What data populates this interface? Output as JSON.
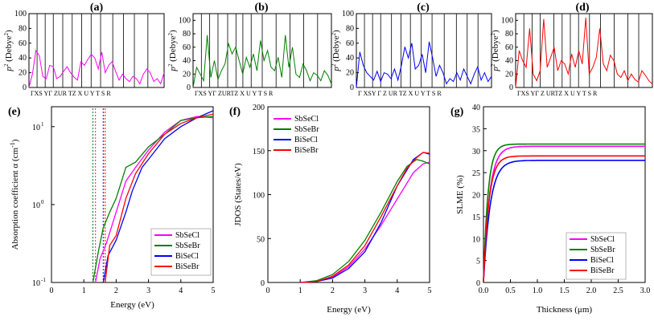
{
  "colors": {
    "SbSeCl": "#ff00ff",
    "SbSeBr": "#008000",
    "BiSeCl": "#0000ff",
    "BiSeBr": "#ff0000",
    "axis": "#000000"
  },
  "chart_data": [
    {
      "panel": "(a)",
      "type": "line",
      "series": "SbSeCl",
      "color": "#ff00ff",
      "ylabel": "p²(Debye²)",
      "ylabel_main": "p",
      "ylabel_sup1": "2",
      "ylabel_unit": "(Debye",
      "ylabel_sup2": "2",
      "ylabel_close": ")",
      "ylim": [
        0,
        100
      ],
      "yticks": [
        0,
        20,
        40,
        60,
        80,
        100
      ],
      "kpoint_labels": "ΓXS YΓ ZUR TZ X U Y T S R",
      "kpath": [
        0,
        0.06,
        0.12,
        0.18,
        0.25,
        0.32,
        0.39,
        0.46,
        0.53,
        0.62,
        0.7,
        0.78,
        0.88,
        1
      ],
      "values": [
        0,
        18,
        50,
        43,
        15,
        12,
        30,
        28,
        12,
        15,
        22,
        28,
        20,
        14,
        10,
        35,
        30,
        38,
        45,
        40,
        25,
        48,
        20,
        30,
        35,
        22,
        10,
        18,
        12,
        8,
        15,
        12,
        5,
        18,
        25,
        20,
        8,
        12,
        5,
        20
      ]
    },
    {
      "panel": "(b)",
      "type": "line",
      "series": "SbSeBr",
      "color": "#008000",
      "ylabel": "p²(Debye²)",
      "ylabel_main": "p",
      "ylabel_sup1": "2",
      "ylabel_unit": "(Debye",
      "ylabel_sup2": "2",
      "ylabel_close": ")",
      "ylim": [
        0,
        110
      ],
      "yticks": [
        0,
        20,
        40,
        60,
        80,
        100
      ],
      "kpoint_labels": "ΓXS YΓ ZURTZ X U Y T S R",
      "kpath": [
        0,
        0.06,
        0.12,
        0.18,
        0.25,
        0.31,
        0.36,
        0.42,
        0.5,
        0.6,
        0.7,
        0.8,
        0.9,
        1
      ],
      "values": [
        0,
        30,
        20,
        10,
        78,
        15,
        40,
        12,
        25,
        35,
        65,
        50,
        60,
        40,
        20,
        45,
        30,
        50,
        25,
        70,
        40,
        55,
        30,
        25,
        45,
        15,
        78,
        30,
        60,
        20,
        15,
        35,
        25,
        10,
        22,
        18,
        10,
        25,
        18,
        5
      ]
    },
    {
      "panel": "(c)",
      "type": "line",
      "series": "BiSeCl",
      "color": "#0000ff",
      "ylabel": "p²(Debye²)",
      "ylabel_main": "p",
      "ylabel_sup1": "2",
      "ylabel_unit": "(Debye",
      "ylabel_sup2": "2",
      "ylabel_close": ")",
      "ylim": [
        0,
        100
      ],
      "yticks": [
        0,
        20,
        40,
        60,
        80,
        100
      ],
      "kpoint_labels": "Γ XSY Γ Z UR TZ X U Y T S R",
      "kpath": [
        0,
        0.06,
        0.12,
        0.18,
        0.26,
        0.33,
        0.4,
        0.48,
        0.56,
        0.65,
        0.74,
        0.82,
        0.9,
        1
      ],
      "values": [
        0,
        48,
        30,
        20,
        15,
        10,
        22,
        8,
        20,
        18,
        12,
        25,
        10,
        30,
        55,
        40,
        60,
        25,
        30,
        45,
        20,
        62,
        40,
        15,
        30,
        20,
        5,
        12,
        8,
        20,
        10,
        25,
        15,
        5,
        18,
        28,
        10,
        20,
        8,
        15
      ]
    },
    {
      "panel": "(d)",
      "type": "line",
      "series": "BiSeBr",
      "color": "#ff0000",
      "ylabel": "p²(Debye²)",
      "ylabel_main": "p",
      "ylabel_sup1": "2",
      "ylabel_unit": "(Debye",
      "ylabel_sup2": "2",
      "ylabel_close": ")",
      "ylim": [
        0,
        110
      ],
      "yticks": [
        0,
        20,
        40,
        60,
        80,
        100
      ],
      "kpoint_labels": "ΓXS YΓ Z URTZ X U Y T S R",
      "kpath": [
        0,
        0.06,
        0.12,
        0.18,
        0.28,
        0.34,
        0.4,
        0.46,
        0.54,
        0.62,
        0.72,
        0.82,
        0.9,
        1
      ],
      "values": [
        0,
        55,
        40,
        30,
        88,
        20,
        10,
        25,
        102,
        30,
        45,
        60,
        25,
        40,
        35,
        20,
        50,
        30,
        55,
        35,
        104,
        20,
        30,
        45,
        88,
        35,
        25,
        48,
        40,
        20,
        15,
        25,
        10,
        20,
        12,
        8,
        25,
        18,
        10,
        5
      ]
    },
    {
      "panel": "(e)",
      "type": "line",
      "yscale": "log",
      "xlabel": "Energy (eV)",
      "ylabel": "Absorption coefficient α (cm⁻¹)",
      "ylabel_main": "Absorption coefficient α (cm",
      "ylabel_sup": "-1",
      "ylabel_close": ")",
      "xlim": [
        0,
        5
      ],
      "xticks": [
        0,
        1,
        2,
        3,
        4,
        5
      ],
      "ylim": [
        0.1,
        18
      ],
      "yticks_labels": [
        "10",
        "10",
        "10"
      ],
      "yticks_exps": [
        "-1",
        "0",
        "1"
      ],
      "yticks_vals": [
        0.1,
        1,
        10
      ],
      "gap_lines": [
        {
          "series": "SbSeBr",
          "x": 1.28
        },
        {
          "series": "SbSeCl",
          "x": 1.36
        },
        {
          "series": "BiSeCl",
          "x": 1.6
        },
        {
          "series": "BiSeBr",
          "x": 1.66
        }
      ],
      "legend": [
        "SbSeCl",
        "SbSeBr",
        "BiSeCl",
        "BiSeBr"
      ],
      "series": [
        {
          "name": "SbSeCl",
          "x": [
            1.36,
            1.5,
            1.7,
            2.0,
            2.3,
            2.6,
            3.0,
            3.5,
            4.0,
            4.5,
            5.0
          ],
          "y": [
            0.1,
            0.2,
            0.32,
            0.8,
            2.0,
            3.0,
            5.0,
            8.5,
            12,
            13.5,
            13
          ]
        },
        {
          "name": "SbSeBr",
          "x": [
            1.28,
            1.45,
            1.6,
            1.8,
            2.0,
            2.3,
            2.6,
            3.0,
            3.5,
            4.0,
            4.5,
            5.0
          ],
          "y": [
            0.1,
            0.25,
            0.5,
            0.8,
            1.2,
            3.0,
            3.5,
            5.5,
            8.0,
            12,
            13,
            13.5
          ]
        },
        {
          "name": "BiSeCl",
          "x": [
            1.6,
            1.75,
            2.0,
            2.3,
            2.5,
            2.8,
            3.0,
            3.5,
            4.0,
            4.5,
            5.0
          ],
          "y": [
            0.1,
            0.22,
            0.35,
            0.8,
            1.5,
            3.0,
            3.8,
            7.0,
            10,
            13,
            16
          ]
        },
        {
          "name": "BiSeBr",
          "x": [
            1.66,
            1.8,
            2.0,
            2.3,
            2.6,
            3.0,
            3.5,
            4.0,
            4.5,
            5.0
          ],
          "y": [
            0.1,
            0.3,
            0.4,
            1.2,
            2.5,
            4.5,
            8.0,
            11,
            13,
            14.5
          ]
        }
      ]
    },
    {
      "panel": "(f)",
      "type": "line",
      "xlabel": "Energy (eV)",
      "ylabel": "JDOS (States/eV)",
      "xlim": [
        0,
        5
      ],
      "xticks": [
        0,
        1,
        2,
        3,
        4,
        5
      ],
      "ylim": [
        0,
        200
      ],
      "yticks": [
        0,
        50,
        100,
        150,
        200
      ],
      "legend": [
        "SbSeCl",
        "SbSeBr",
        "BiSeCl",
        "BiSeBr"
      ],
      "series": [
        {
          "name": "SbSeCl",
          "x": [
            1.0,
            1.5,
            2.0,
            2.5,
            3.0,
            3.5,
            4.0,
            4.5,
            4.8,
            5.0
          ],
          "y": [
            0,
            1,
            6,
            18,
            38,
            65,
            95,
            125,
            135,
            137
          ]
        },
        {
          "name": "SbSeBr",
          "x": [
            1.0,
            1.5,
            2.0,
            2.5,
            3.0,
            3.5,
            4.0,
            4.3,
            4.6,
            4.8,
            5.0
          ],
          "y": [
            0,
            2,
            9,
            24,
            48,
            80,
            115,
            132,
            140,
            138,
            135
          ]
        },
        {
          "name": "BiSeCl",
          "x": [
            1.0,
            1.5,
            2.0,
            2.5,
            3.0,
            3.5,
            4.0,
            4.5,
            4.8,
            5.0
          ],
          "y": [
            0,
            1,
            5,
            16,
            35,
            68,
            110,
            140,
            148,
            146
          ]
        },
        {
          "name": "BiSeBr",
          "x": [
            1.0,
            1.5,
            2.0,
            2.5,
            3.0,
            3.5,
            4.0,
            4.3,
            4.6,
            4.8,
            5.0
          ],
          "y": [
            0,
            1,
            7,
            20,
            42,
            75,
            110,
            130,
            142,
            148,
            147
          ]
        }
      ]
    },
    {
      "panel": "(g)",
      "type": "line",
      "xlabel": "Thickness (μm)",
      "ylabel": "SLME (%)",
      "xlim": [
        0,
        3
      ],
      "xticks": [
        0,
        0.5,
        1.0,
        1.5,
        2.0,
        2.5,
        3.0
      ],
      "xtick_labels": [
        "0.0",
        "0.5",
        "1.0",
        "1.5",
        "2.0",
        "2.5",
        "3.0"
      ],
      "ylim": [
        0,
        40
      ],
      "yticks": [
        0,
        5,
        10,
        15,
        20,
        25,
        30,
        35,
        40
      ],
      "legend": [
        "SbSeCl",
        "SbSeBr",
        "BiSeCl",
        "BiSeBr"
      ],
      "series": [
        {
          "name": "SbSeCl",
          "saturation": 31.0,
          "rate": 9
        },
        {
          "name": "SbSeBr",
          "saturation": 31.5,
          "rate": 12
        },
        {
          "name": "BiSeCl",
          "saturation": 27.8,
          "rate": 8
        },
        {
          "name": "BiSeBr",
          "saturation": 28.8,
          "rate": 10
        }
      ]
    }
  ]
}
